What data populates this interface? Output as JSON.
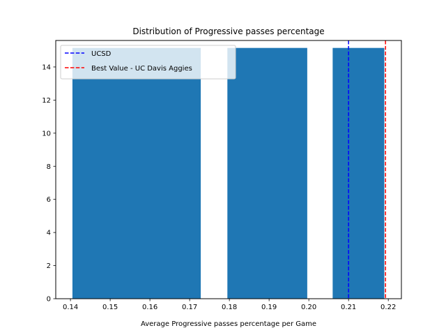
{
  "chart_data": {
    "type": "bar",
    "title": "Distribution of Progressive passes percentage",
    "xlabel": "Average Progressive passes percentage per Game",
    "ylabel": "",
    "bins": [
      {
        "start": 0.1405,
        "end": 0.1728,
        "count": 15.15
      },
      {
        "start": 0.1795,
        "end": 0.1996,
        "count": 15.15
      },
      {
        "start": 0.206,
        "end": 0.219,
        "count": 15.15
      }
    ],
    "bar_color": "#1f77b4",
    "xlim": [
      0.1363,
      0.2233
    ],
    "ylim": [
      0,
      15.6
    ],
    "xticks": [
      0.14,
      0.15,
      0.16,
      0.17,
      0.18,
      0.19,
      0.2,
      0.21,
      0.22
    ],
    "xtick_labels": [
      "0.14",
      "0.15",
      "0.16",
      "0.17",
      "0.18",
      "0.19",
      "0.20",
      "0.21",
      "0.22"
    ],
    "yticks": [
      0,
      2,
      4,
      6,
      8,
      10,
      12,
      14
    ],
    "ytick_labels": [
      "0",
      "2",
      "4",
      "6",
      "8",
      "10",
      "12",
      "14"
    ],
    "reference_lines": [
      {
        "name": "UCSD",
        "x": 0.21,
        "color": "#0000ff",
        "style": "dashed"
      },
      {
        "name": "Best Value - UC Davis Aggies",
        "x": 0.2193,
        "color": "#ff0000",
        "style": "dashed"
      }
    ],
    "legend_position": "top-left",
    "grid": false
  }
}
